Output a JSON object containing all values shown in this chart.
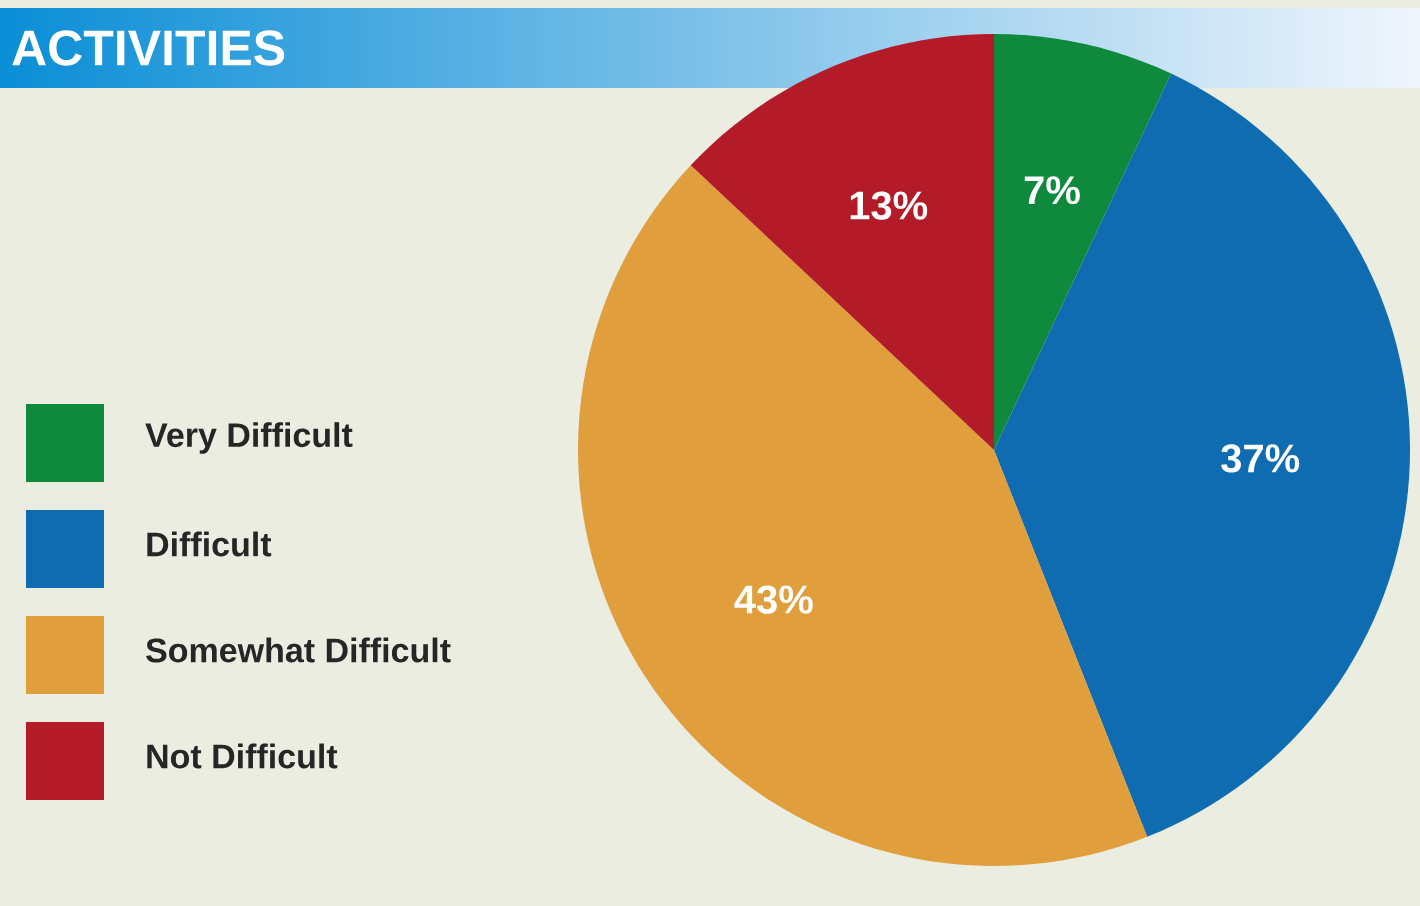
{
  "chart_data": {
    "type": "pie",
    "title": "ACTIVITIES",
    "categories": [
      "Very Difficult",
      "Difficult",
      "Somewhat Difficult",
      "Not Difficult"
    ],
    "values": [
      7,
      37,
      43,
      13
    ],
    "value_labels": [
      "7%",
      "37%",
      "43%",
      "13%"
    ],
    "colors": [
      "#0f8a3c",
      "#106cb0",
      "#e09e3c",
      "#b31b29"
    ],
    "legend": "left"
  }
}
